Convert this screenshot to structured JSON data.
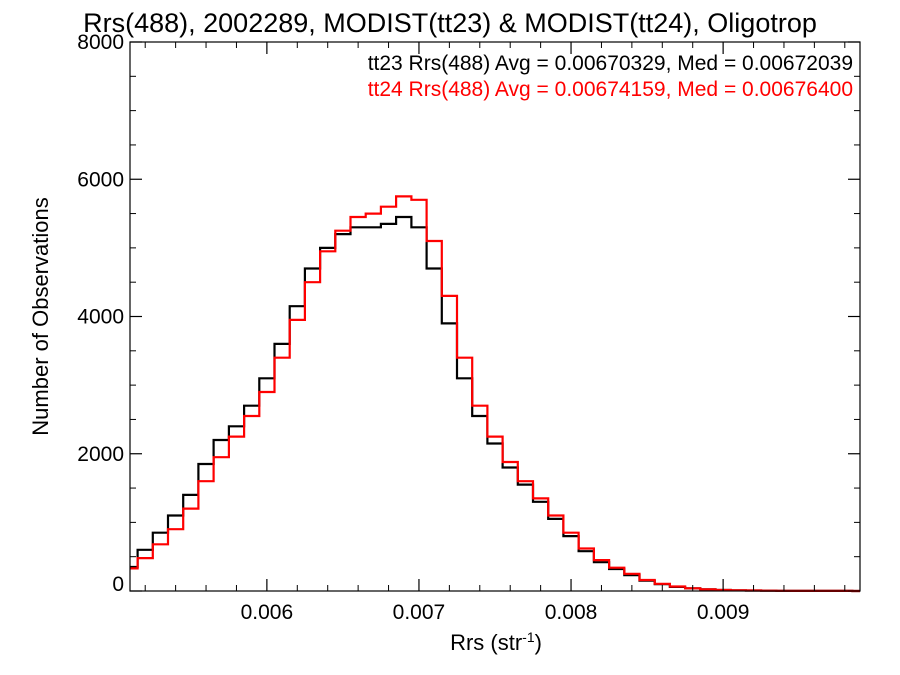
{
  "chart_data": {
    "type": "line",
    "title": "Rrs(488), 2002289, MODIST(tt23) & MODIST(tt24), Oligotrop",
    "xlabel": "Rrs (str",
    "xlabel_superscript": "-1",
    "xlabel_suffix": ")",
    "ylabel": "Number of Observations",
    "xlim": [
      0.0051,
      0.0099
    ],
    "ylim": [
      0,
      8000
    ],
    "x_ticks": [
      0.006,
      0.007,
      0.008,
      0.009
    ],
    "x_tick_labels": [
      "0.006",
      "0.007",
      "0.008",
      "0.009"
    ],
    "y_ticks": [
      0,
      2000,
      4000,
      6000,
      8000
    ],
    "y_tick_labels": [
      "0",
      "2000",
      "4000",
      "6000",
      "8000"
    ],
    "legend_position": "top-right",
    "series": [
      {
        "name": "tt23",
        "legend_label": "tt23 Rrs(488) Avg = 0.00670329, Med = 0.00672039",
        "color": "#000000",
        "x": [
          0.0051,
          0.0052,
          0.0053,
          0.0054,
          0.0055,
          0.0056,
          0.0057,
          0.0058,
          0.0059,
          0.006,
          0.0061,
          0.0062,
          0.0063,
          0.0064,
          0.0065,
          0.0066,
          0.0067,
          0.0068,
          0.0069,
          0.007,
          0.0071,
          0.0072,
          0.0073,
          0.0074,
          0.0075,
          0.0076,
          0.0077,
          0.0078,
          0.0079,
          0.008,
          0.0081,
          0.0082,
          0.0083,
          0.0084,
          0.0085,
          0.0086,
          0.0087,
          0.0088,
          0.0089,
          0.009,
          0.0091,
          0.0092,
          0.0093,
          0.0094,
          0.0095,
          0.0096,
          0.0097,
          0.0098,
          0.0099
        ],
        "y": [
          350,
          600,
          850,
          1100,
          1400,
          1850,
          2200,
          2400,
          2700,
          3100,
          3600,
          4150,
          4700,
          5000,
          5200,
          5300,
          5300,
          5350,
          5450,
          5300,
          4700,
          3900,
          3100,
          2550,
          2150,
          1800,
          1550,
          1300,
          1050,
          800,
          580,
          420,
          320,
          230,
          150,
          100,
          60,
          40,
          25,
          15,
          10,
          8,
          5,
          3,
          2,
          2,
          1,
          1,
          0
        ]
      },
      {
        "name": "tt24",
        "legend_label": "tt24 Rrs(488) Avg = 0.00674159, Med = 0.00676400",
        "color": "#ff0000",
        "x": [
          0.0051,
          0.0052,
          0.0053,
          0.0054,
          0.0055,
          0.0056,
          0.0057,
          0.0058,
          0.0059,
          0.006,
          0.0061,
          0.0062,
          0.0063,
          0.0064,
          0.0065,
          0.0066,
          0.0067,
          0.0068,
          0.0069,
          0.007,
          0.0071,
          0.0072,
          0.0073,
          0.0074,
          0.0075,
          0.0076,
          0.0077,
          0.0078,
          0.0079,
          0.008,
          0.0081,
          0.0082,
          0.0083,
          0.0084,
          0.0085,
          0.0086,
          0.0087,
          0.0088,
          0.0089,
          0.009,
          0.0091,
          0.0092,
          0.0093,
          0.0094,
          0.0095,
          0.0096,
          0.0097,
          0.0098,
          0.0099
        ],
        "y": [
          330,
          480,
          680,
          900,
          1200,
          1600,
          1950,
          2250,
          2550,
          2900,
          3400,
          3950,
          4500,
          4950,
          5250,
          5450,
          5500,
          5600,
          5750,
          5700,
          5100,
          4300,
          3400,
          2700,
          2250,
          1880,
          1600,
          1350,
          1100,
          850,
          620,
          450,
          340,
          250,
          160,
          105,
          65,
          40,
          25,
          15,
          10,
          8,
          5,
          3,
          2,
          2,
          1,
          1,
          0
        ]
      }
    ]
  }
}
